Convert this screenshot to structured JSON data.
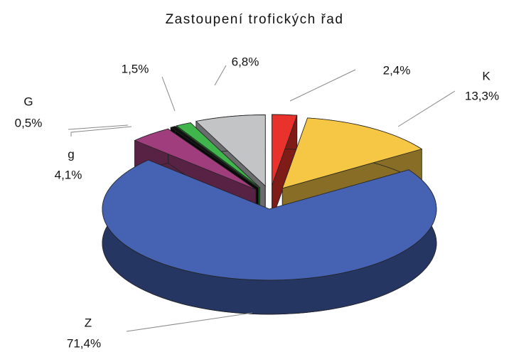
{
  "chart_data": {
    "type": "pie",
    "title": "Zastoupení trofických řad",
    "categories": [
      null,
      "K",
      "Z",
      "g",
      "G",
      null,
      null
    ],
    "values": [
      2.4,
      13.3,
      71.4,
      4.1,
      0.5,
      1.5,
      6.8
    ],
    "value_labels": [
      "2,4%",
      "13,3%",
      "71,4%",
      "4,1%",
      "0,5%",
      "1,5%",
      "6,8%"
    ],
    "colors": [
      "#e8322b",
      "#f6c744",
      "#4562b3",
      "#a03d7d",
      "#111111",
      "#3fb54c",
      "#c3c4c6"
    ]
  }
}
